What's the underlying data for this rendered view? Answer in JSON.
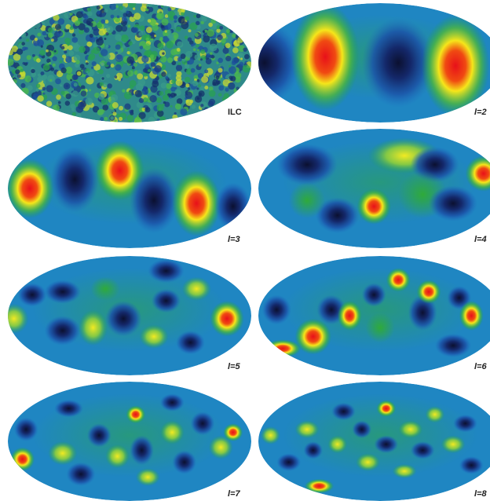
{
  "panels": [
    {
      "label": "ILC"
    },
    {
      "label": "l=2"
    },
    {
      "label": "l=3"
    },
    {
      "label": "l=4"
    },
    {
      "label": "l=5"
    },
    {
      "label": "l=6"
    },
    {
      "label": "l=7"
    },
    {
      "label": "l=8"
    }
  ]
}
